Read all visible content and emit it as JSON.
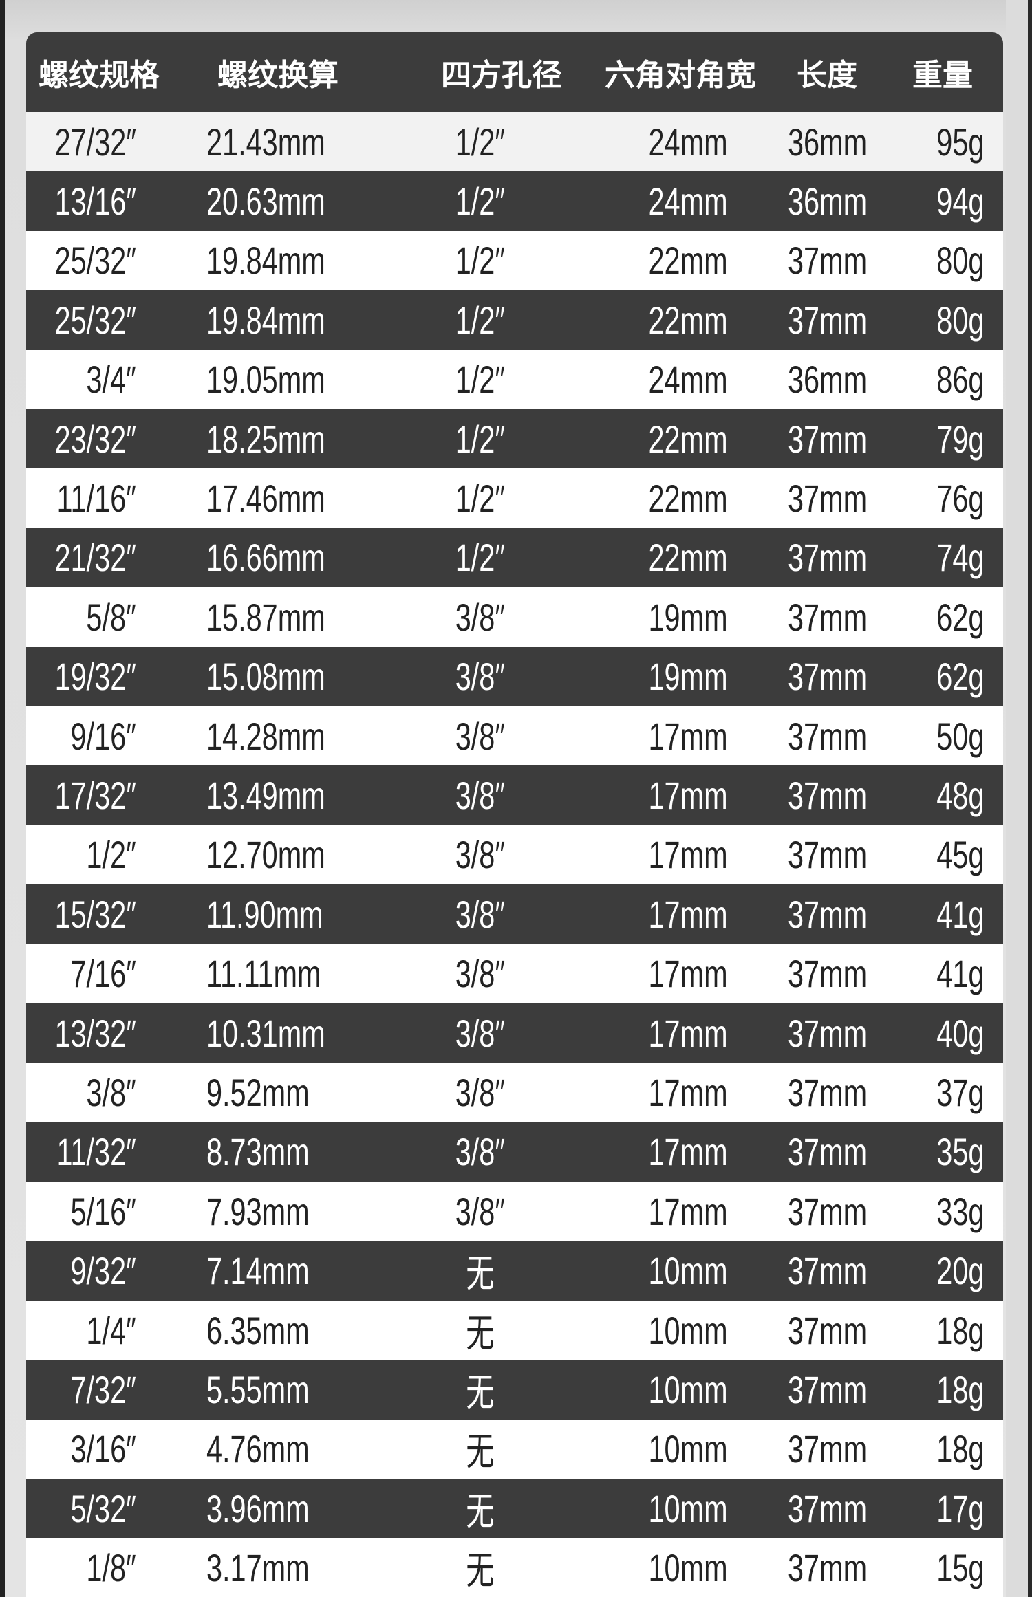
{
  "table": {
    "headers": [
      "螺纹规格",
      "螺纹换算",
      "四方孔径",
      "六角对角宽",
      "长度",
      "重量"
    ],
    "rows": [
      [
        "27/32″",
        "21.43mm",
        "1/2″",
        "24mm",
        "36mm",
        "95g"
      ],
      [
        "13/16″",
        "20.63mm",
        "1/2″",
        "24mm",
        "36mm",
        "94g"
      ],
      [
        "25/32″",
        "19.84mm",
        "1/2″",
        "22mm",
        "37mm",
        "80g"
      ],
      [
        "25/32″",
        "19.84mm",
        "1/2″",
        "22mm",
        "37mm",
        "80g"
      ],
      [
        "3/4″",
        "19.05mm",
        "1/2″",
        "24mm",
        "36mm",
        "86g"
      ],
      [
        "23/32″",
        "18.25mm",
        "1/2″",
        "22mm",
        "37mm",
        "79g"
      ],
      [
        "11/16″",
        "17.46mm",
        "1/2″",
        "22mm",
        "37mm",
        "76g"
      ],
      [
        "21/32″",
        "16.66mm",
        "1/2″",
        "22mm",
        "37mm",
        "74g"
      ],
      [
        "5/8″",
        "15.87mm",
        "3/8″",
        "19mm",
        "37mm",
        "62g"
      ],
      [
        "19/32″",
        "15.08mm",
        "3/8″",
        "19mm",
        "37mm",
        "62g"
      ],
      [
        "9/16″",
        "14.28mm",
        "3/8″",
        "17mm",
        "37mm",
        "50g"
      ],
      [
        "17/32″",
        "13.49mm",
        "3/8″",
        "17mm",
        "37mm",
        "48g"
      ],
      [
        "1/2″",
        "12.70mm",
        "3/8″",
        "17mm",
        "37mm",
        "45g"
      ],
      [
        "15/32″",
        "11.90mm",
        "3/8″",
        "17mm",
        "37mm",
        "41g"
      ],
      [
        "7/16″",
        "11.11mm",
        "3/8″",
        "17mm",
        "37mm",
        "41g"
      ],
      [
        "13/32″",
        "10.31mm",
        "3/8″",
        "17mm",
        "37mm",
        "40g"
      ],
      [
        "3/8″",
        "9.52mm",
        "3/8″",
        "17mm",
        "37mm",
        "37g"
      ],
      [
        "11/32″",
        "8.73mm",
        "3/8″",
        "17mm",
        "37mm",
        "35g"
      ],
      [
        "5/16″",
        "7.93mm",
        "3/8″",
        "17mm",
        "37mm",
        "33g"
      ],
      [
        "9/32″",
        "7.14mm",
        "无",
        "10mm",
        "37mm",
        "20g"
      ],
      [
        "1/4″",
        "6.35mm",
        "无",
        "10mm",
        "37mm",
        "18g"
      ],
      [
        "7/32″",
        "5.55mm",
        "无",
        "10mm",
        "37mm",
        "18g"
      ],
      [
        "3/16″",
        "4.76mm",
        "无",
        "10mm",
        "37mm",
        "18g"
      ],
      [
        "5/32″",
        "3.96mm",
        "无",
        "10mm",
        "37mm",
        "17g"
      ],
      [
        "1/8″",
        "3.17mm",
        "无",
        "10mm",
        "37mm",
        "15g"
      ]
    ]
  },
  "colors": {
    "dark_row": "#3c3c3c",
    "light_row": "#ffffff",
    "header_text": "#ffffff"
  }
}
